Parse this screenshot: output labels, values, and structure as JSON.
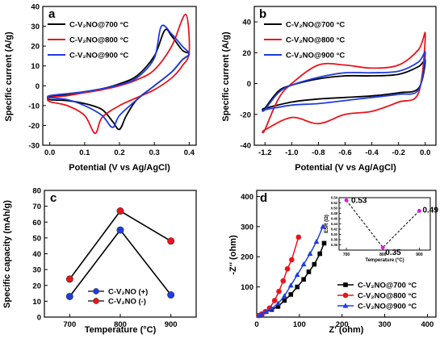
{
  "chart_data": [
    {
      "panel": "a",
      "type": "line",
      "xlabel": "Potential (V vs Ag/AgCl)",
      "ylabel": "Specific current (A/g)",
      "xlim": [
        -0.02,
        0.42
      ],
      "ylim": [
        -30,
        40
      ],
      "xticks": [
        "0.0",
        "0.1",
        "0.2",
        "0.3",
        "0.4"
      ],
      "yticks": [
        "-30",
        "-20",
        "-10",
        "0",
        "10",
        "20",
        "30",
        "40"
      ],
      "legend_placement": "top-left",
      "series": [
        {
          "name": "C-V₂NO@700 °C",
          "color": "#000000",
          "x": [
            0.0,
            0.05,
            0.1,
            0.15,
            0.2,
            0.25,
            0.3,
            0.33,
            0.35,
            0.38,
            0.4,
            0.38,
            0.35,
            0.3,
            0.25,
            0.22,
            0.2,
            0.18,
            0.15,
            0.1,
            0.05,
            0.0
          ],
          "y": [
            -5.5,
            -4.5,
            -3,
            -1.5,
            1,
            5,
            15,
            28,
            25,
            18,
            16,
            13,
            7,
            0,
            -7,
            -15,
            -22,
            -18,
            -12,
            -9,
            -7.5,
            -7
          ]
        },
        {
          "name": "C-V₂NO@800 °C",
          "color": "#e8141c",
          "x": [
            0.0,
            0.05,
            0.1,
            0.15,
            0.2,
            0.25,
            0.3,
            0.35,
            0.39,
            0.4,
            0.38,
            0.35,
            0.3,
            0.25,
            0.2,
            0.15,
            0.13,
            0.1,
            0.05,
            0.0
          ],
          "y": [
            -6,
            -5,
            -3.5,
            -2,
            0,
            3,
            8,
            20,
            36,
            17,
            10,
            4,
            -2,
            -6,
            -10,
            -16,
            -24,
            -15,
            -10,
            -8
          ]
        },
        {
          "name": "C-V₂NO@900 °C",
          "color": "#1f3ce0",
          "x": [
            0.0,
            0.05,
            0.1,
            0.15,
            0.2,
            0.25,
            0.3,
            0.32,
            0.35,
            0.38,
            0.4,
            0.38,
            0.35,
            0.3,
            0.25,
            0.2,
            0.18,
            0.15,
            0.1,
            0.05,
            0.0
          ],
          "y": [
            -5,
            -4,
            -3,
            -1.5,
            0.5,
            4,
            14,
            30,
            26,
            20,
            16,
            13,
            7,
            0,
            -7,
            -15,
            -21,
            -15,
            -10,
            -7,
            -6
          ]
        }
      ]
    },
    {
      "panel": "b",
      "type": "line",
      "xlabel": "Potential (V vs Ag/AgCl)",
      "ylabel": "Specific current (A/g)",
      "xlim": [
        -1.28,
        0.08
      ],
      "ylim": [
        -40,
        50
      ],
      "xticks": [
        "-1.2",
        "-1.0",
        "-0.8",
        "-0.6",
        "-0.4",
        "-0.2",
        "0.0"
      ],
      "yticks": [
        "-40",
        "-20",
        "0",
        "20",
        "40"
      ],
      "legend_placement": "top-left",
      "series": [
        {
          "name": "C-V₂NO@700 °C",
          "color": "#000000",
          "x": [
            -1.2,
            -1.1,
            -1.0,
            -0.8,
            -0.6,
            -0.4,
            -0.2,
            -0.05,
            0.0,
            -0.05,
            -0.2,
            -0.4,
            -0.6,
            -0.8,
            -1.0,
            -1.2
          ],
          "y": [
            -16,
            -5,
            -1,
            3,
            5,
            5,
            6,
            11,
            15,
            -3,
            -6,
            -8,
            -9,
            -10,
            -12,
            -16
          ]
        },
        {
          "name": "C-V₂NO@800 °C",
          "color": "#e8141c",
          "x": [
            -1.2,
            -1.1,
            -1.0,
            -0.8,
            -0.6,
            -0.4,
            -0.2,
            -0.05,
            0.0,
            -0.05,
            -0.2,
            -0.4,
            -0.6,
            -0.8,
            -1.0,
            -1.2
          ],
          "y": [
            -30,
            -10,
            0,
            12,
            12,
            10,
            12,
            22,
            32,
            -6,
            -12,
            -18,
            -20,
            -26,
            -22,
            -30
          ]
        },
        {
          "name": "C-V₂NO@900 °C",
          "color": "#1f3ce0",
          "x": [
            -1.2,
            -1.1,
            -1.0,
            -0.8,
            -0.6,
            -0.4,
            -0.2,
            -0.05,
            0.0,
            -0.05,
            -0.2,
            -0.4,
            -0.6,
            -0.8,
            -1.0,
            -1.2
          ],
          "y": [
            -17,
            -6,
            -1,
            4,
            7,
            7,
            8,
            14,
            20,
            -4,
            -7,
            -9,
            -11,
            -13,
            -14,
            -17
          ]
        }
      ]
    },
    {
      "panel": "c",
      "type": "line",
      "xlabel": "Temperature (°C)",
      "ylabel": "Specific capacity (mAh/g)",
      "xlim": [
        650,
        950
      ],
      "ylim": [
        0,
        80
      ],
      "xticks": [
        "700",
        "800",
        "900"
      ],
      "yticks": [
        "0",
        "10",
        "20",
        "30",
        "40",
        "50",
        "60",
        "70",
        "80"
      ],
      "legend_placement": "bottom-center",
      "x": [
        700,
        800,
        900
      ],
      "series": [
        {
          "name": "C-V₂NO (+)",
          "color": "#1f3ce0",
          "values": [
            13,
            55,
            14
          ]
        },
        {
          "name": "C-V₂NO (-)",
          "color": "#e8141c",
          "values": [
            24,
            67,
            48
          ]
        }
      ]
    },
    {
      "panel": "d",
      "type": "scatter",
      "xlabel": "Z' (ohm)",
      "ylabel": "-Z'' (ohm)",
      "xlim": [
        0,
        420
      ],
      "ylim": [
        0,
        420
      ],
      "xticks": [
        "0",
        "100",
        "200",
        "300",
        "400"
      ],
      "yticks": [
        "100",
        "200",
        "300",
        "400"
      ],
      "legend_placement": "bottom-right",
      "series": [
        {
          "name": "C-V₂NO@700 °C",
          "color": "#000000",
          "marker": "square",
          "x": [
            5,
            12,
            22,
            35,
            50,
            65,
            80,
            95,
            110,
            122,
            135,
            148,
            158
          ],
          "y": [
            5,
            10,
            18,
            25,
            35,
            55,
            75,
            100,
            125,
            150,
            175,
            210,
            245
          ]
        },
        {
          "name": "C-V₂NO@800 °C",
          "color": "#e8141c",
          "marker": "circle",
          "x": [
            5,
            12,
            20,
            30,
            42,
            52,
            62,
            72,
            82,
            98
          ],
          "y": [
            5,
            10,
            18,
            30,
            55,
            85,
            120,
            160,
            190,
            265
          ]
        },
        {
          "name": "C-V₂NO@900 °C",
          "color": "#1f3ce0",
          "marker": "triangle",
          "x": [
            5,
            12,
            22,
            35,
            50,
            65,
            80,
            95,
            110,
            125,
            140,
            155
          ],
          "y": [
            5,
            10,
            18,
            28,
            45,
            70,
            105,
            140,
            175,
            210,
            250,
            300
          ]
        }
      ],
      "inset": {
        "type": "line",
        "xlabel": "Temperature (°C)",
        "ylabel": "ESR (Ω)",
        "xlim": [
          680,
          930
        ],
        "ylim": [
          0.34,
          0.54
        ],
        "xticks": [
          "700",
          "800",
          "900"
        ],
        "yticks": [
          "0.36",
          "0.38",
          "0.40",
          "0.42",
          "0.44",
          "0.46",
          "0.48",
          "0.50",
          "0.52",
          "0.54"
        ],
        "x": [
          700,
          800,
          900
        ],
        "values": [
          0.53,
          0.35,
          0.49
        ],
        "point_labels": [
          "0.53",
          "0.35",
          "0.49"
        ],
        "color": "#ee10ee"
      }
    }
  ]
}
